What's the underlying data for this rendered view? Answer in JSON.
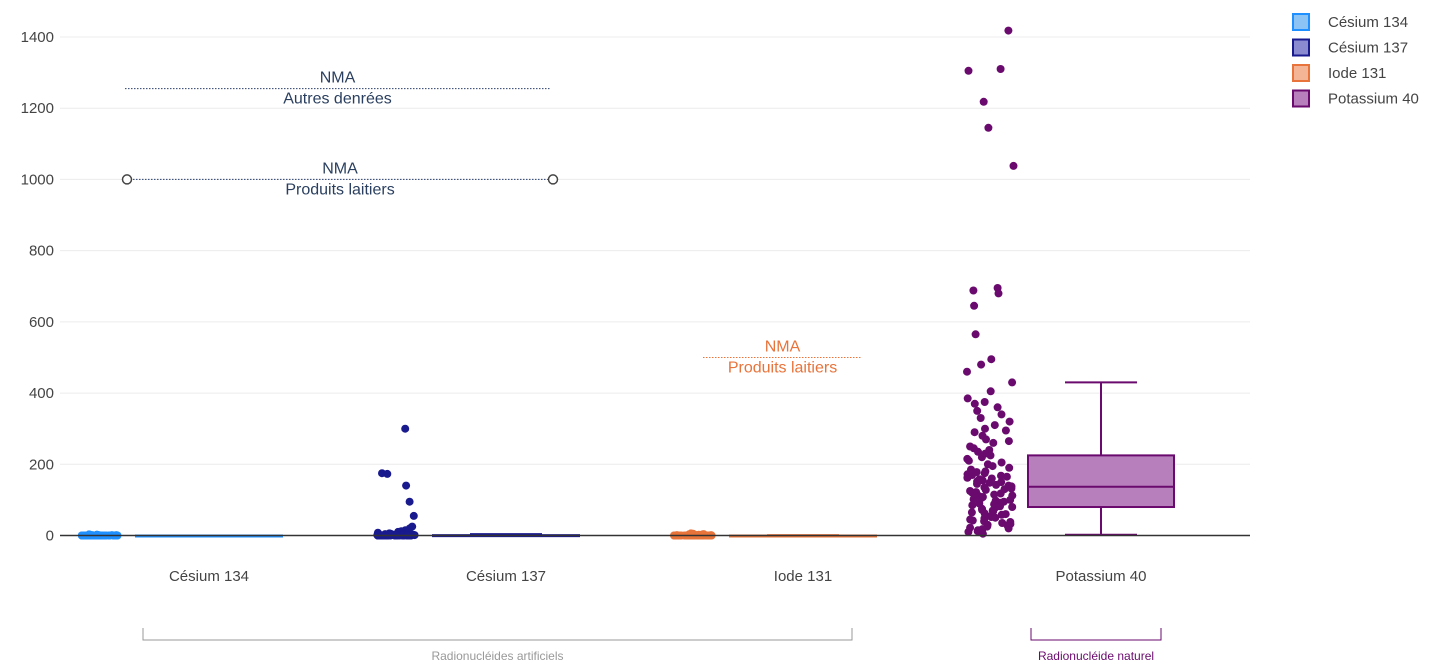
{
  "chart_data": {
    "type": "box",
    "ylim": [
      -50,
      1480
    ],
    "yticks": [
      0,
      200,
      400,
      600,
      800,
      1000,
      1200,
      1400
    ],
    "ytick_labels": [
      "0",
      "200",
      "400",
      "600",
      "800",
      "1000",
      "1200",
      "1400"
    ],
    "categories": [
      "Césium 134",
      "Césium 137",
      "Iode 131",
      "Potassium 40"
    ],
    "series": [
      {
        "name": "Césium 134",
        "color": "#1e90ff",
        "fill": "#8cc4f5",
        "box": {
          "min": 0,
          "q1": 0,
          "median": 0,
          "q3": 0,
          "max": 0
        },
        "points": [
          0,
          0,
          0,
          0,
          0,
          0,
          0,
          0,
          0,
          0,
          0,
          0,
          0,
          0,
          0,
          0,
          0,
          0,
          0,
          0,
          0,
          0,
          0,
          0,
          0,
          0,
          0,
          0,
          0,
          0,
          0,
          0,
          0,
          0,
          0,
          0,
          0,
          0,
          0,
          0,
          0,
          0,
          0,
          0,
          0,
          0,
          0,
          0,
          0,
          0,
          0,
          0,
          0,
          0,
          0,
          0,
          0,
          0,
          0,
          0,
          1,
          1,
          1,
          1,
          1,
          1,
          2,
          2,
          2,
          3
        ]
      },
      {
        "name": "Césium 137",
        "color": "#1a1a8f",
        "fill": "#8a8ad0",
        "box": {
          "min": 0,
          "q1": 0,
          "median": 0,
          "q3": 1,
          "max": 4
        },
        "points": [
          300,
          175,
          173,
          140,
          95,
          55,
          25,
          20,
          15,
          12,
          10,
          8,
          6,
          5,
          4,
          3,
          3,
          2,
          2,
          2,
          1,
          1,
          1,
          1,
          1,
          1,
          1,
          0,
          0,
          0,
          0,
          0,
          0,
          0,
          0,
          0,
          0,
          0,
          0,
          0,
          0,
          0,
          0,
          0,
          0,
          0,
          0,
          0,
          0,
          0,
          0,
          0,
          0,
          0,
          0,
          0,
          0,
          0,
          0,
          0
        ]
      },
      {
        "name": "Iode 131",
        "color": "#e8743b",
        "fill": "#f3b595",
        "box": {
          "min": 0,
          "q1": 0,
          "median": 0,
          "q3": 0,
          "max": 1
        },
        "points": [
          0,
          0,
          0,
          0,
          0,
          0,
          0,
          0,
          0,
          0,
          0,
          0,
          0,
          0,
          0,
          0,
          0,
          0,
          0,
          0,
          0,
          0,
          0,
          0,
          0,
          0,
          0,
          0,
          0,
          0,
          0,
          0,
          0,
          0,
          0,
          0,
          0,
          0,
          0,
          0,
          0,
          0,
          0,
          0,
          0,
          0,
          0,
          0,
          0,
          0,
          1,
          1,
          1,
          2,
          2,
          3,
          3,
          4,
          5,
          6
        ]
      },
      {
        "name": "Potassium 40",
        "color": "#6a0a6e",
        "fill": "#b77fbb",
        "box": {
          "min": 2,
          "q1": 80,
          "median": 137,
          "q3": 225,
          "max": 430
        },
        "points": [
          1418,
          1310,
          1305,
          1218,
          1145,
          1038,
          695,
          688,
          680,
          645,
          565,
          495,
          480,
          460,
          430,
          405,
          385,
          375,
          370,
          360,
          350,
          340,
          330,
          320,
          310,
          300,
          295,
          290,
          280,
          270,
          265,
          260,
          250,
          245,
          240,
          235,
          230,
          225,
          220,
          215,
          210,
          205,
          200,
          195,
          190,
          185,
          180,
          178,
          175,
          172,
          170,
          168,
          165,
          162,
          160,
          158,
          155,
          152,
          150,
          148,
          145,
          142,
          140,
          138,
          135,
          132,
          130,
          128,
          125,
          122,
          120,
          118,
          115,
          112,
          110,
          108,
          105,
          102,
          100,
          98,
          95,
          92,
          90,
          88,
          85,
          82,
          80,
          78,
          75,
          72,
          70,
          68,
          65,
          62,
          60,
          58,
          55,
          52,
          50,
          48,
          45,
          42,
          40,
          38,
          35,
          32,
          30,
          28,
          25,
          22,
          20,
          18,
          15,
          12,
          10,
          5
        ]
      }
    ],
    "annotations": [
      {
        "line1": "NMA",
        "line2": "Autres denrées",
        "y": 1255,
        "color": "#2a3f6e",
        "text_color": "#2a3f5f"
      },
      {
        "line1": "NMA",
        "line2": "Produits laitiers",
        "y": 1000,
        "color": "#2a3f6e",
        "text_color": "#2a3f5f"
      },
      {
        "line1": "NMA",
        "line2": "Produits laitiers",
        "y": 500,
        "color": "#e8743b",
        "text_color": "#e8743b"
      }
    ],
    "groups": [
      {
        "label": "Radionucléides artificiels",
        "color": "#999999"
      },
      {
        "label": "Radionucléide naturel",
        "color": "#6a0a6e"
      }
    ],
    "legend_position": "top-right"
  }
}
